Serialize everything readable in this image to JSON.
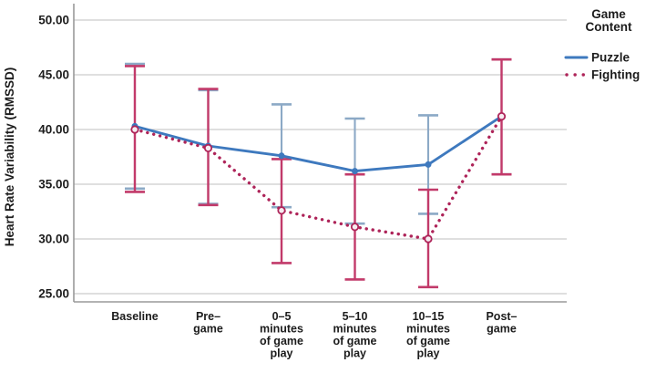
{
  "chart_data": {
    "type": "line",
    "title": "",
    "xlabel": "",
    "ylabel": "Heart Rate Variability (RMSSD)",
    "ylim": [
      25,
      50
    ],
    "yticks": [
      25,
      30,
      35,
      40,
      45,
      50
    ],
    "ytick_labels": [
      "25.00",
      "30.00",
      "35.00",
      "40.00",
      "45.00",
      "50.00"
    ],
    "grid": "horizontal",
    "categories": [
      "Baseline",
      "Pre-game",
      "0-5 minutes of game play",
      "5-10 minutes of game play",
      "10-15 minutes of game play",
      "Post-game"
    ],
    "category_label_lines": [
      [
        "Baseline"
      ],
      [
        "Pre–",
        "game"
      ],
      [
        "0–5",
        "minutes",
        "of game",
        "play"
      ],
      [
        "5–10",
        "minutes",
        "of game",
        "play"
      ],
      [
        "10–15",
        "minutes",
        "of game",
        "play"
      ],
      [
        "Post–",
        "game"
      ]
    ],
    "series": [
      {
        "name": "Puzzle",
        "line_style": "solid",
        "color": "#3E79BE",
        "error_bar_color": "#8CA9C6",
        "values": [
          40.3,
          38.5,
          37.6,
          36.2,
          36.8,
          41.2
        ],
        "error_low": [
          34.6,
          33.2,
          32.9,
          31.4,
          32.3,
          35.9
        ],
        "error_high": [
          46.0,
          43.6,
          42.3,
          41.0,
          41.3,
          46.4
        ]
      },
      {
        "name": "Fighting",
        "line_style": "dotted",
        "color": "#AE2459",
        "error_bar_color": "#C23A6A",
        "values": [
          40.0,
          38.3,
          32.6,
          31.1,
          30.0,
          41.2
        ],
        "error_low": [
          34.3,
          33.1,
          27.8,
          26.3,
          25.6,
          35.9
        ],
        "error_high": [
          45.8,
          43.7,
          37.3,
          35.9,
          34.5,
          46.4
        ]
      }
    ],
    "legend": {
      "position": "top-right",
      "title": "Game Content",
      "title_lines": [
        "Game",
        "Content"
      ],
      "entries": [
        {
          "label": "Puzzle",
          "swatch": "blue-solid-line"
        },
        {
          "label": "Fighting",
          "swatch": "crimson-dotted-line"
        }
      ]
    },
    "colors": {
      "gridline": "#cccccc",
      "axis_line": "#9a9a9a",
      "text": "#1c1c1c",
      "background": "#ffffff"
    }
  }
}
